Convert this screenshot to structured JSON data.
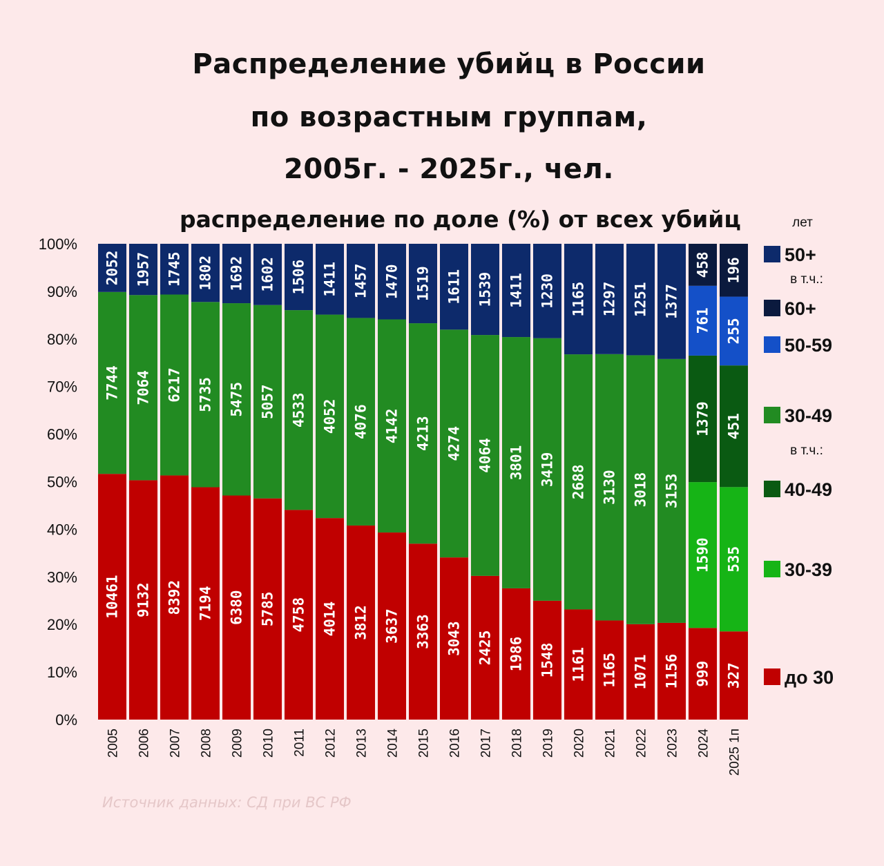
{
  "title": {
    "line1": "Распределение убийц в России",
    "line2": "по возрастным группам,",
    "line3": "2005г. - 2025г., чел."
  },
  "subtitle": "распределение по доле (%) от всех убийц",
  "source": "Источник данных: СД при ВС РФ",
  "colors": {
    "background": "#fde9ea",
    "under30": "#c00000",
    "g30_49": "#228b22",
    "g30_39": "#16b416",
    "g40_49": "#0a5a12",
    "g50plus": "#0d2a6b",
    "g50_59": "#1450c8",
    "g60plus": "#0b1a3e"
  },
  "legend": {
    "unit": "лет",
    "incl": "в т.ч.:",
    "items": [
      {
        "key": "g50plus",
        "label": "50+"
      },
      {
        "key": "g60plus",
        "label": "60+"
      },
      {
        "key": "g50_59",
        "label": "50-59"
      },
      {
        "key": "g30_49",
        "label": "30-49"
      },
      {
        "key": "g40_49",
        "label": "40-49"
      },
      {
        "key": "g30_39",
        "label": "30-39"
      },
      {
        "key": "under30",
        "label": "до 30"
      }
    ]
  },
  "chart_data": {
    "type": "bar",
    "stacked": true,
    "normalized": true,
    "ylim": [
      0,
      100
    ],
    "yticks": [
      "0%",
      "10%",
      "20%",
      "30%",
      "40%",
      "50%",
      "60%",
      "70%",
      "80%",
      "90%",
      "100%"
    ],
    "categories": [
      "2005",
      "2006",
      "2007",
      "2008",
      "2009",
      "2010",
      "2011",
      "2012",
      "2013",
      "2014",
      "2015",
      "2016",
      "2017",
      "2018",
      "2019",
      "2020",
      "2021",
      "2022",
      "2023",
      "2024",
      "2025 1п"
    ],
    "series": [
      {
        "name": "до 30",
        "key": "under30",
        "values": [
          10461,
          9132,
          8392,
          7194,
          6380,
          5785,
          4758,
          4014,
          3812,
          3637,
          3363,
          3043,
          2425,
          1986,
          1548,
          1161,
          1165,
          1071,
          1156,
          999,
          327
        ]
      },
      {
        "name": "30-49",
        "key": "g30_49",
        "values": [
          7744,
          7064,
          6217,
          5735,
          5475,
          5057,
          4533,
          4052,
          4076,
          4142,
          4213,
          4274,
          4064,
          3801,
          3419,
          2688,
          3130,
          3018,
          3153,
          null,
          null
        ]
      },
      {
        "name": "30-39",
        "key": "g30_39",
        "values": [
          null,
          null,
          null,
          null,
          null,
          null,
          null,
          null,
          null,
          null,
          null,
          null,
          null,
          null,
          null,
          null,
          null,
          null,
          null,
          1590,
          535
        ]
      },
      {
        "name": "40-49",
        "key": "g40_49",
        "values": [
          null,
          null,
          null,
          null,
          null,
          null,
          null,
          null,
          null,
          null,
          null,
          null,
          null,
          null,
          null,
          null,
          null,
          null,
          null,
          1379,
          451
        ]
      },
      {
        "name": "50+",
        "key": "g50plus",
        "values": [
          2052,
          1957,
          1745,
          1802,
          1692,
          1602,
          1506,
          1411,
          1457,
          1470,
          1519,
          1611,
          1539,
          1411,
          1230,
          1165,
          1297,
          1251,
          1377,
          null,
          null
        ]
      },
      {
        "name": "50-59",
        "key": "g50_59",
        "values": [
          null,
          null,
          null,
          null,
          null,
          null,
          null,
          null,
          null,
          null,
          null,
          null,
          null,
          null,
          null,
          null,
          null,
          null,
          null,
          761,
          255
        ]
      },
      {
        "name": "60+",
        "key": "g60plus",
        "values": [
          null,
          null,
          null,
          null,
          null,
          null,
          null,
          null,
          null,
          null,
          null,
          null,
          null,
          null,
          null,
          null,
          null,
          null,
          null,
          458,
          196
        ]
      }
    ]
  }
}
